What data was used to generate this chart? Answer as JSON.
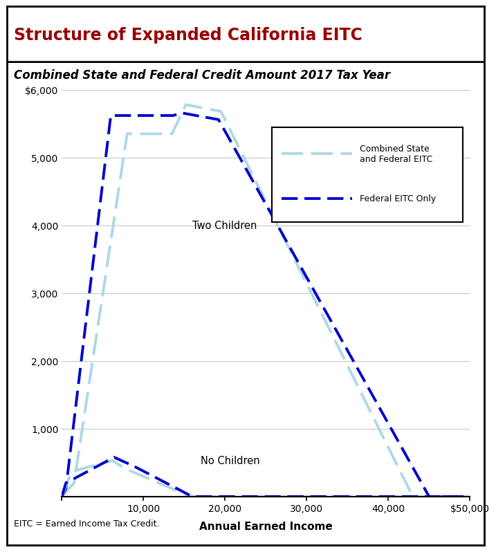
{
  "title": "Structure of Expanded California EITC",
  "subtitle": "Combined State and Federal Credit Amount 2017 Tax Year",
  "footnote": "EITC = Earned Income Tax Credit.",
  "xlabel": "Annual Earned Income",
  "title_color": "#990000",
  "title_fontsize": 17,
  "subtitle_fontsize": 12,
  "ylim": [
    0,
    6000
  ],
  "xlim": [
    0,
    50000
  ],
  "yticks": [
    0,
    1000,
    2000,
    3000,
    4000,
    5000,
    6000
  ],
  "xticks": [
    0,
    10000,
    20000,
    30000,
    40000,
    50000
  ],
  "xticklabels": [
    "",
    "10,000",
    "20,000",
    "30,000",
    "40,000",
    "$50,000"
  ],
  "yticklabels": [
    "",
    "1,000",
    "2,000",
    "3,000",
    "4,000",
    "5,000",
    "$6,000"
  ],
  "combined_color": "#add8e6",
  "federal_color": "#0000cc",
  "label_combined": "Combined State\nand Federal EITC",
  "label_federal": "Federal EITC Only",
  "annotation_two_children": "Two Children",
  "annotation_no_children": "No Children",
  "two_children_combined_x": [
    0,
    1500,
    8000,
    13500,
    15200,
    19500,
    43000,
    43100,
    50000
  ],
  "two_children_combined_y": [
    0,
    200,
    5350,
    5350,
    5780,
    5680,
    0,
    0,
    0
  ],
  "two_children_federal_x": [
    0,
    500,
    6000,
    13600,
    14800,
    19200,
    45000,
    45100,
    50000
  ],
  "two_children_federal_y": [
    0,
    120,
    5620,
    5620,
    5656,
    5560,
    0,
    0,
    0
  ],
  "no_children_combined_x": [
    0,
    1200,
    6200,
    8000,
    15800,
    15900,
    50000
  ],
  "no_children_combined_y": [
    0,
    370,
    530,
    400,
    0,
    0,
    0
  ],
  "no_children_federal_x": [
    0,
    500,
    6400,
    8800,
    16000,
    16100,
    50000
  ],
  "no_children_federal_y": [
    0,
    200,
    580,
    450,
    0,
    0,
    0
  ]
}
